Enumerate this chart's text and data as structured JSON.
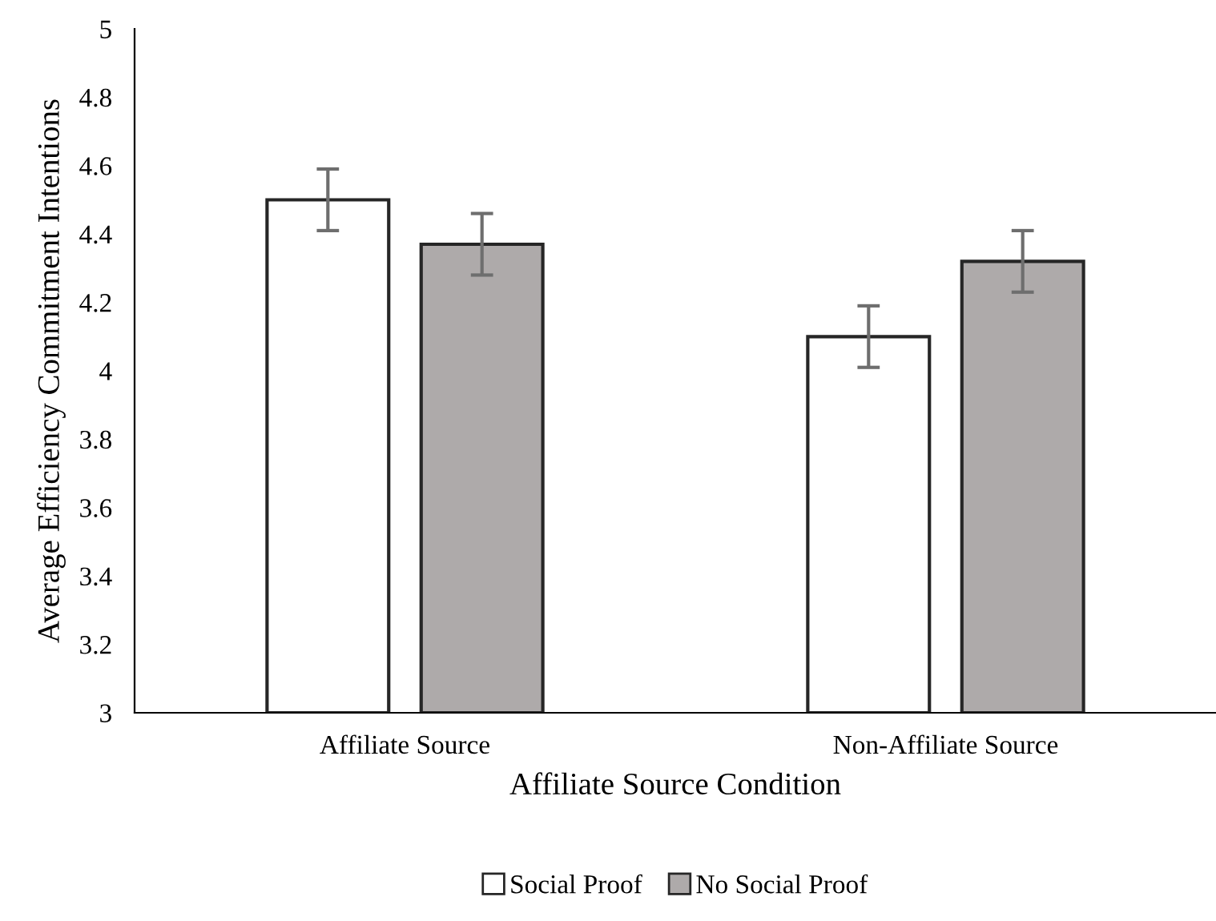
{
  "chart_data": {
    "type": "bar",
    "xlabel": "Affiliate Source Condition",
    "ylabel": "Average Efficiency Commitment Intentions",
    "categories": [
      "Affiliate Source",
      "Non-Affiliate Source"
    ],
    "series": [
      {
        "name": "Social Proof",
        "color": "#ffffff",
        "values": [
          4.5,
          4.1
        ],
        "errors": [
          0.09,
          0.09
        ]
      },
      {
        "name": "No Social Proof",
        "color": "#aeaaaa",
        "values": [
          4.37,
          4.32
        ],
        "errors": [
          0.09,
          0.09
        ]
      }
    ],
    "ylim": [
      3,
      5
    ],
    "yticks": [
      3,
      3.2,
      3.4,
      3.6,
      3.8,
      4,
      4.2,
      4.4,
      4.6,
      4.8,
      5
    ],
    "grid": false,
    "legend": "bottom"
  }
}
